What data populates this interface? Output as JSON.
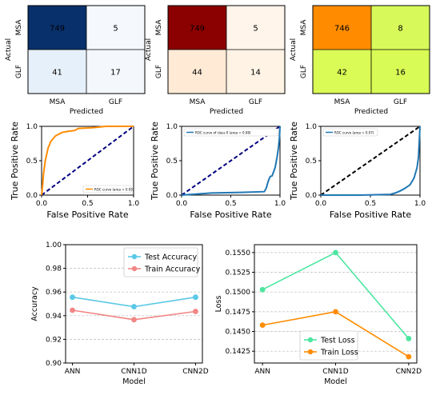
{
  "chart_data": [
    {
      "type": "heatmap",
      "row_labels": [
        "MSA",
        "GLF"
      ],
      "col_labels": [
        "MSA",
        "GLF"
      ],
      "ylabel": "Actual",
      "xlabel": "Predicted",
      "values": [
        [
          749,
          5
        ],
        [
          41,
          17
        ]
      ],
      "colors": [
        [
          "#08306b",
          "#f5f9fe"
        ],
        [
          "#e6f0fa",
          "#f4f8fd"
        ]
      ],
      "text_colors": [
        [
          "#ffffff",
          "#000000"
        ],
        [
          "#000000",
          "#000000"
        ]
      ]
    },
    {
      "type": "heatmap",
      "row_labels": [
        "MSA",
        "GLF"
      ],
      "col_labels": [
        "MSA",
        "GLF"
      ],
      "ylabel": "Actual",
      "xlabel": "Predicted",
      "values": [
        [
          749,
          5
        ],
        [
          44,
          14
        ]
      ],
      "colors": [
        [
          "#8b0000",
          "#fff5ea"
        ],
        [
          "#feead5",
          "#fff3e5"
        ]
      ],
      "text_colors": [
        [
          "#ffffff",
          "#000000"
        ],
        [
          "#000000",
          "#000000"
        ]
      ]
    },
    {
      "type": "heatmap",
      "row_labels": [
        "MSA",
        "GLF"
      ],
      "col_labels": [
        "MSA",
        "GLF"
      ],
      "ylabel": "Actual",
      "xlabel": "Predicted",
      "values": [
        [
          746,
          8
        ],
        [
          42,
          16
        ]
      ],
      "colors": [
        [
          "#ff8c00",
          "#d7fa5a"
        ],
        [
          "#dafa55",
          "#d8fb55"
        ]
      ],
      "text_colors": [
        [
          "#ffffff",
          "#000000"
        ],
        [
          "#000000",
          "#000000"
        ]
      ]
    },
    {
      "type": "line",
      "xlabel": "False Positive Rate",
      "ylabel": "True Positive Rate",
      "xlim": [
        0,
        1
      ],
      "ylim": [
        0,
        1
      ],
      "xticks": [
        "0.0",
        "0.5",
        "1.0"
      ],
      "yticks": [
        "0.0",
        "0.5",
        "1.0"
      ],
      "legend": "ROC curve (area = 0.93)",
      "legend_position": "lower-right",
      "curve_color": "#ff8c00",
      "diagonal_color": "#000080",
      "curve": [
        [
          0,
          0
        ],
        [
          0.01,
          0.12
        ],
        [
          0.02,
          0.3
        ],
        [
          0.04,
          0.5
        ],
        [
          0.07,
          0.68
        ],
        [
          0.1,
          0.78
        ],
        [
          0.15,
          0.86
        ],
        [
          0.22,
          0.91
        ],
        [
          0.3,
          0.93
        ],
        [
          0.36,
          0.94
        ],
        [
          0.4,
          0.97
        ],
        [
          0.55,
          0.98
        ],
        [
          0.7,
          1.0
        ],
        [
          1.0,
          1.0
        ]
      ]
    },
    {
      "type": "line",
      "xlabel": "False Positive Rate",
      "ylabel": "True Positive Rate",
      "xlim": [
        0,
        1
      ],
      "ylim": [
        0,
        1
      ],
      "xticks": [
        "0.0",
        "0.5",
        "1.0"
      ],
      "yticks": [
        "0.0",
        "0.5",
        "1.0"
      ],
      "legend": "ROC curve of class 0 (area = 0.08)",
      "legend_position": "upper-left",
      "curve_color": "#1f77b4",
      "diagonal_color": "#000080",
      "curve": [
        [
          0,
          0
        ],
        [
          0.3,
          0.03
        ],
        [
          0.6,
          0.04
        ],
        [
          0.84,
          0.05
        ],
        [
          0.86,
          0.1
        ],
        [
          0.88,
          0.2
        ],
        [
          0.9,
          0.27
        ],
        [
          0.92,
          0.28
        ],
        [
          0.95,
          0.4
        ],
        [
          0.97,
          0.55
        ],
        [
          0.985,
          0.7
        ],
        [
          0.995,
          0.85
        ],
        [
          1.0,
          1.0
        ]
      ]
    },
    {
      "type": "line",
      "xlabel": "False Positive Rate",
      "ylabel": "True Positive Rate",
      "xlim": [
        0,
        1
      ],
      "ylim": [
        0,
        1
      ],
      "xticks": [
        "0.0",
        "0.5",
        "1.0"
      ],
      "yticks": [
        "0.0",
        "0.5",
        "1.0"
      ],
      "legend": "ROC curve (area = 0.07)",
      "legend_position": "upper-left",
      "curve_color": "#1f77b4",
      "diagonal_color": "#000000",
      "curve": [
        [
          0,
          0
        ],
        [
          0.4,
          0.0
        ],
        [
          0.7,
          0.01
        ],
        [
          0.75,
          0.03
        ],
        [
          0.8,
          0.06
        ],
        [
          0.85,
          0.1
        ],
        [
          0.9,
          0.15
        ],
        [
          0.94,
          0.25
        ],
        [
          0.97,
          0.4
        ],
        [
          0.985,
          0.55
        ],
        [
          1.0,
          1.0
        ]
      ]
    },
    {
      "type": "line",
      "xlabel": "Model",
      "ylabel": "Accuracy",
      "categories": [
        "ANN",
        "CNN1D",
        "CNN2D"
      ],
      "ylim": [
        0.9,
        1.0
      ],
      "yticks": [
        "0.90",
        "0.92",
        "0.94",
        "0.96",
        "0.98",
        "1.00"
      ],
      "grid": "y-dashed",
      "legend_position": "upper-right",
      "series": [
        {
          "name": "Test Accuracy",
          "values": [
            0.9556,
            0.9476,
            0.9556
          ],
          "color": "#5bc8e6"
        },
        {
          "name": "Train Accuracy",
          "values": [
            0.9446,
            0.9366,
            0.9436
          ],
          "color": "#f28585"
        }
      ]
    },
    {
      "type": "line",
      "xlabel": "Model",
      "ylabel": "Loss",
      "categories": [
        "ANN",
        "CNN1D",
        "CNN2D"
      ],
      "ylim": [
        0.141,
        0.156
      ],
      "yticks": [
        "0.1425",
        "0.1450",
        "0.1475",
        "0.1500",
        "0.1525",
        "0.1550"
      ],
      "grid": "y-dashed",
      "legend_position": "lower-right",
      "series": [
        {
          "name": "Test Loss",
          "values": [
            0.1503,
            0.155,
            0.1441
          ],
          "color": "#4de6a0"
        },
        {
          "name": "Train Loss",
          "values": [
            0.1458,
            0.1475,
            0.1418
          ],
          "color": "#ff8c00"
        }
      ]
    }
  ]
}
